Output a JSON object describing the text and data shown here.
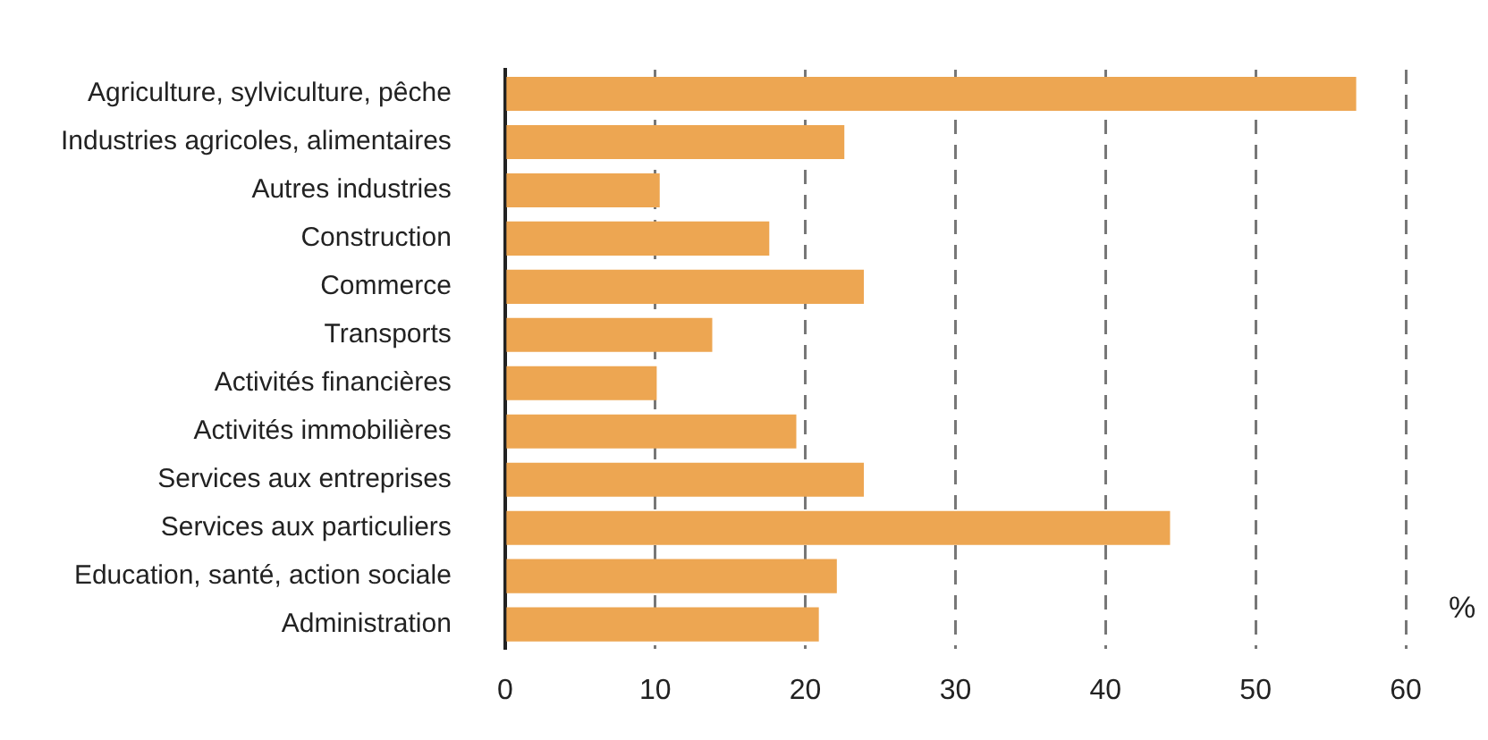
{
  "chart_data": {
    "type": "bar",
    "orientation": "horizontal",
    "xlabel": "%",
    "categories": [
      "Agriculture, sylviculture, pêche",
      "Industries agricoles, alimentaires",
      "Autres industries",
      "Construction",
      "Commerce",
      "Transports",
      "Activités financières",
      "Activités immobilières",
      "Services aux entreprises",
      "Services aux particuliers",
      "Education, santé, action sociale",
      "Administration"
    ],
    "values": [
      56.7,
      22.6,
      10.3,
      17.6,
      23.9,
      13.8,
      10.1,
      19.4,
      23.9,
      44.3,
      22.1,
      20.9
    ],
    "color": "#eda652",
    "xlim": [
      0,
      60
    ],
    "xticks": [
      0,
      10,
      20,
      30,
      40,
      50,
      60
    ],
    "grid": "x",
    "legend": false
  }
}
